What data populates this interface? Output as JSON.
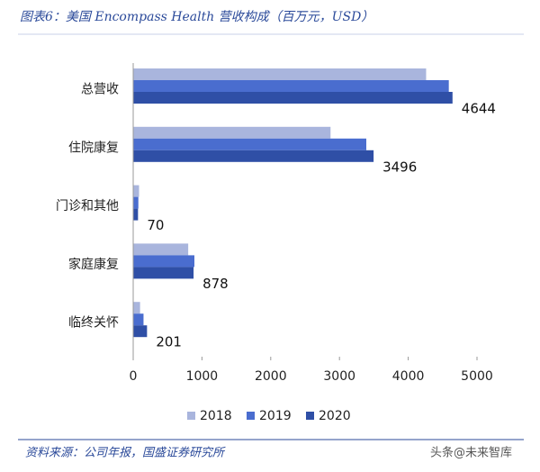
{
  "chart_data": {
    "type": "bar",
    "orientation": "horizontal",
    "title": "图表6：美国 Encompass Health 营收构成（百万元，USD）",
    "source": "资料来源：公司年报，国盛证券研究所",
    "watermark": "头条@未来智库",
    "categories": [
      "总营收",
      "住院康复",
      "门诊和其他",
      "家庭康复",
      "临终关怀"
    ],
    "series": [
      {
        "name": "2018",
        "color": "#a9b5dd",
        "values": [
          4260,
          2870,
          85,
          800,
          100
        ]
      },
      {
        "name": "2019",
        "color": "#4a6dcf",
        "values": [
          4590,
          3390,
          75,
          890,
          150
        ]
      },
      {
        "name": "2020",
        "color": "#2f4fa6",
        "values": [
          4644,
          3496,
          70,
          878,
          201
        ],
        "show_value_labels": true
      }
    ],
    "xlim": [
      0,
      5000
    ],
    "xticks": [
      0,
      1000,
      2000,
      3000,
      4000,
      5000
    ],
    "legend": "bottom"
  }
}
